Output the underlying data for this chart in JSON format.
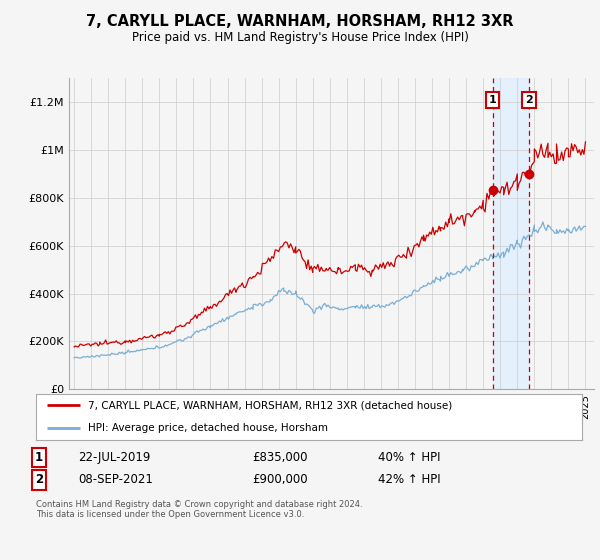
{
  "title": "7, CARYLL PLACE, WARNHAM, HORSHAM, RH12 3XR",
  "subtitle": "Price paid vs. HM Land Registry's House Price Index (HPI)",
  "legend_line1": "7, CARYLL PLACE, WARNHAM, HORSHAM, RH12 3XR (detached house)",
  "legend_line2": "HPI: Average price, detached house, Horsham",
  "sale1_date": "22-JUL-2019",
  "sale1_price": "£835,000",
  "sale1_hpi": "40% ↑ HPI",
  "sale1_year": 2019.55,
  "sale1_value": 835000,
  "sale2_date": "08-SEP-2021",
  "sale2_price": "£900,000",
  "sale2_hpi": "42% ↑ HPI",
  "sale2_year": 2021.69,
  "sale2_value": 900000,
  "footnote": "Contains HM Land Registry data © Crown copyright and database right 2024.\nThis data is licensed under the Open Government Licence v3.0.",
  "red_color": "#cc0000",
  "blue_color": "#7aaed6",
  "shading_color": "#ddeeff",
  "background_color": "#f5f5f5",
  "plot_bg": "#f0f0f0",
  "ylim": [
    0,
    1300000
  ],
  "xlim_start": 1994.7,
  "xlim_end": 2025.5,
  "yticks": [
    0,
    200000,
    400000,
    600000,
    800000,
    1000000,
    1200000
  ],
  "yticklabels": [
    "£0",
    "£200K",
    "£400K",
    "£600K",
    "£800K",
    "£1M",
    "£1.2M"
  ]
}
